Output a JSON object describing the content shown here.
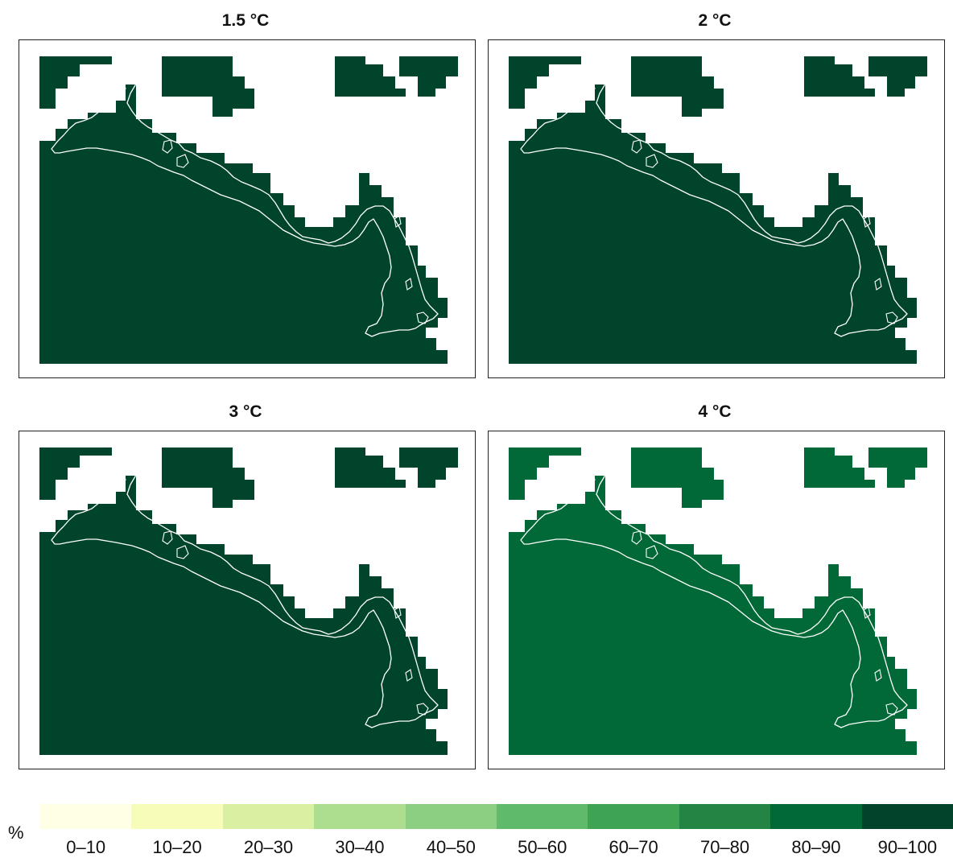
{
  "panels": [
    {
      "title": "1.5 °C",
      "class": "90–100",
      "color": "#00452b"
    },
    {
      "title": "2 °C",
      "class": "90–100",
      "color": "#00452b"
    },
    {
      "title": "3 °C",
      "class": "90–100",
      "color": "#00452b"
    },
    {
      "title": "4 °C",
      "class": "80–90",
      "color": "#006937"
    }
  ],
  "legend": {
    "unit": "%",
    "classes": [
      {
        "label": "0–10",
        "color": "#ffffe5"
      },
      {
        "label": "10–20",
        "color": "#f7fcb9"
      },
      {
        "label": "20–30",
        "color": "#d9f0a3"
      },
      {
        "label": "30–40",
        "color": "#addd8e"
      },
      {
        "label": "40–50",
        "color": "#8ccf82"
      },
      {
        "label": "50–60",
        "color": "#5fba6b"
      },
      {
        "label": "60–70",
        "color": "#3ea454"
      },
      {
        "label": "70–80",
        "color": "#238443"
      },
      {
        "label": "80–90",
        "color": "#006937"
      },
      {
        "label": "90–100",
        "color": "#00452b"
      }
    ]
  }
}
